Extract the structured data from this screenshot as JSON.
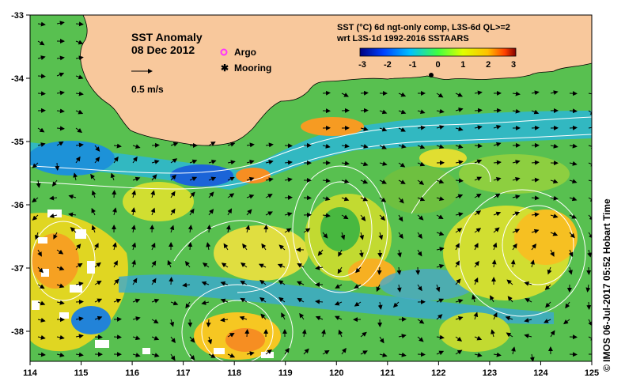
{
  "map": {
    "title": "SST Anomaly",
    "date": "08 Dec 2012",
    "scale_label": "0.5 m/s",
    "legend": {
      "argo_label": "Argo",
      "argo_color": "#ff33ff",
      "mooring_label": "Mooring",
      "mooring_color": "#000000"
    },
    "colorbar": {
      "title_line1": "SST (°C) 6d ngt-only comp, L3S-6d QL>=2",
      "title_line2": "wrt L3S-1d 1992-2016 SSTAARS",
      "ticks": [
        "-3",
        "-2",
        "-1",
        "0",
        "1",
        "2",
        "3"
      ],
      "colors": [
        "#000080",
        "#0040ff",
        "#00c0ff",
        "#40ff40",
        "#e0ff00",
        "#ffc000",
        "#ff4000",
        "#800000"
      ]
    },
    "x_ticks": [
      "114",
      "115",
      "116",
      "117",
      "118",
      "119",
      "120",
      "121",
      "122",
      "123",
      "124",
      "125"
    ],
    "y_ticks": [
      "-33",
      "-34",
      "-35",
      "-36",
      "-37",
      "-38"
    ],
    "land_color": "#f8c89c",
    "ocean_color": "#58c050",
    "credit": "© IMOS 06-Jul-2017 05:52 Hobart Time"
  }
}
